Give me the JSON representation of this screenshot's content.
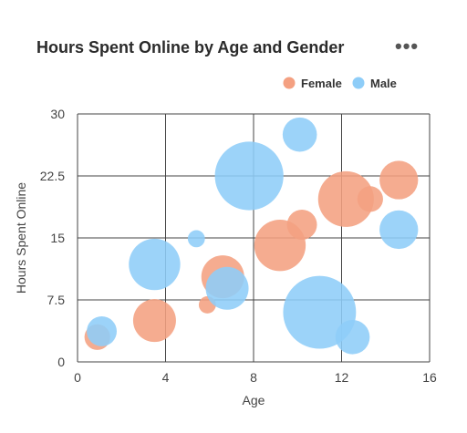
{
  "header": {
    "title": "Hours Spent Online by Age and Gender",
    "more_icon": "•••"
  },
  "chart_data": {
    "type": "bubble",
    "title": "Hours Spent Online by Age and Gender",
    "xlabel": "Age",
    "ylabel": "Hours Spent Online",
    "xlim": [
      0,
      16
    ],
    "ylim": [
      0,
      30
    ],
    "xticks": [
      "0",
      "4",
      "8",
      "12",
      "16"
    ],
    "yticks": [
      "0",
      "7.5",
      "15",
      "22.5",
      "30"
    ],
    "grid": true,
    "legend_position": "top-right",
    "series": [
      {
        "name": "Female",
        "color": "#F4A081",
        "points": [
          {
            "x": 0.9,
            "y": 3.0,
            "r": 3
          },
          {
            "x": 3.5,
            "y": 5.0,
            "r": 5
          },
          {
            "x": 5.9,
            "y": 6.9,
            "r": 2
          },
          {
            "x": 6.6,
            "y": 10.3,
            "r": 5
          },
          {
            "x": 9.2,
            "y": 14.1,
            "r": 6
          },
          {
            "x": 10.2,
            "y": 16.6,
            "r": 3.5
          },
          {
            "x": 12.2,
            "y": 19.7,
            "r": 6.5
          },
          {
            "x": 13.3,
            "y": 19.7,
            "r": 3
          },
          {
            "x": 14.6,
            "y": 22.0,
            "r": 4.5
          }
        ]
      },
      {
        "name": "Male",
        "color": "#8ECDF8",
        "points": [
          {
            "x": 1.1,
            "y": 3.7,
            "r": 3.5
          },
          {
            "x": 3.5,
            "y": 11.8,
            "r": 6
          },
          {
            "x": 5.4,
            "y": 14.9,
            "r": 2
          },
          {
            "x": 6.8,
            "y": 8.9,
            "r": 5
          },
          {
            "x": 7.8,
            "y": 22.5,
            "r": 8
          },
          {
            "x": 10.1,
            "y": 27.5,
            "r": 4
          },
          {
            "x": 11.0,
            "y": 6.0,
            "r": 8.5
          },
          {
            "x": 12.5,
            "y": 3.0,
            "r": 4
          },
          {
            "x": 14.6,
            "y": 16.0,
            "r": 4.5
          }
        ]
      }
    ]
  }
}
